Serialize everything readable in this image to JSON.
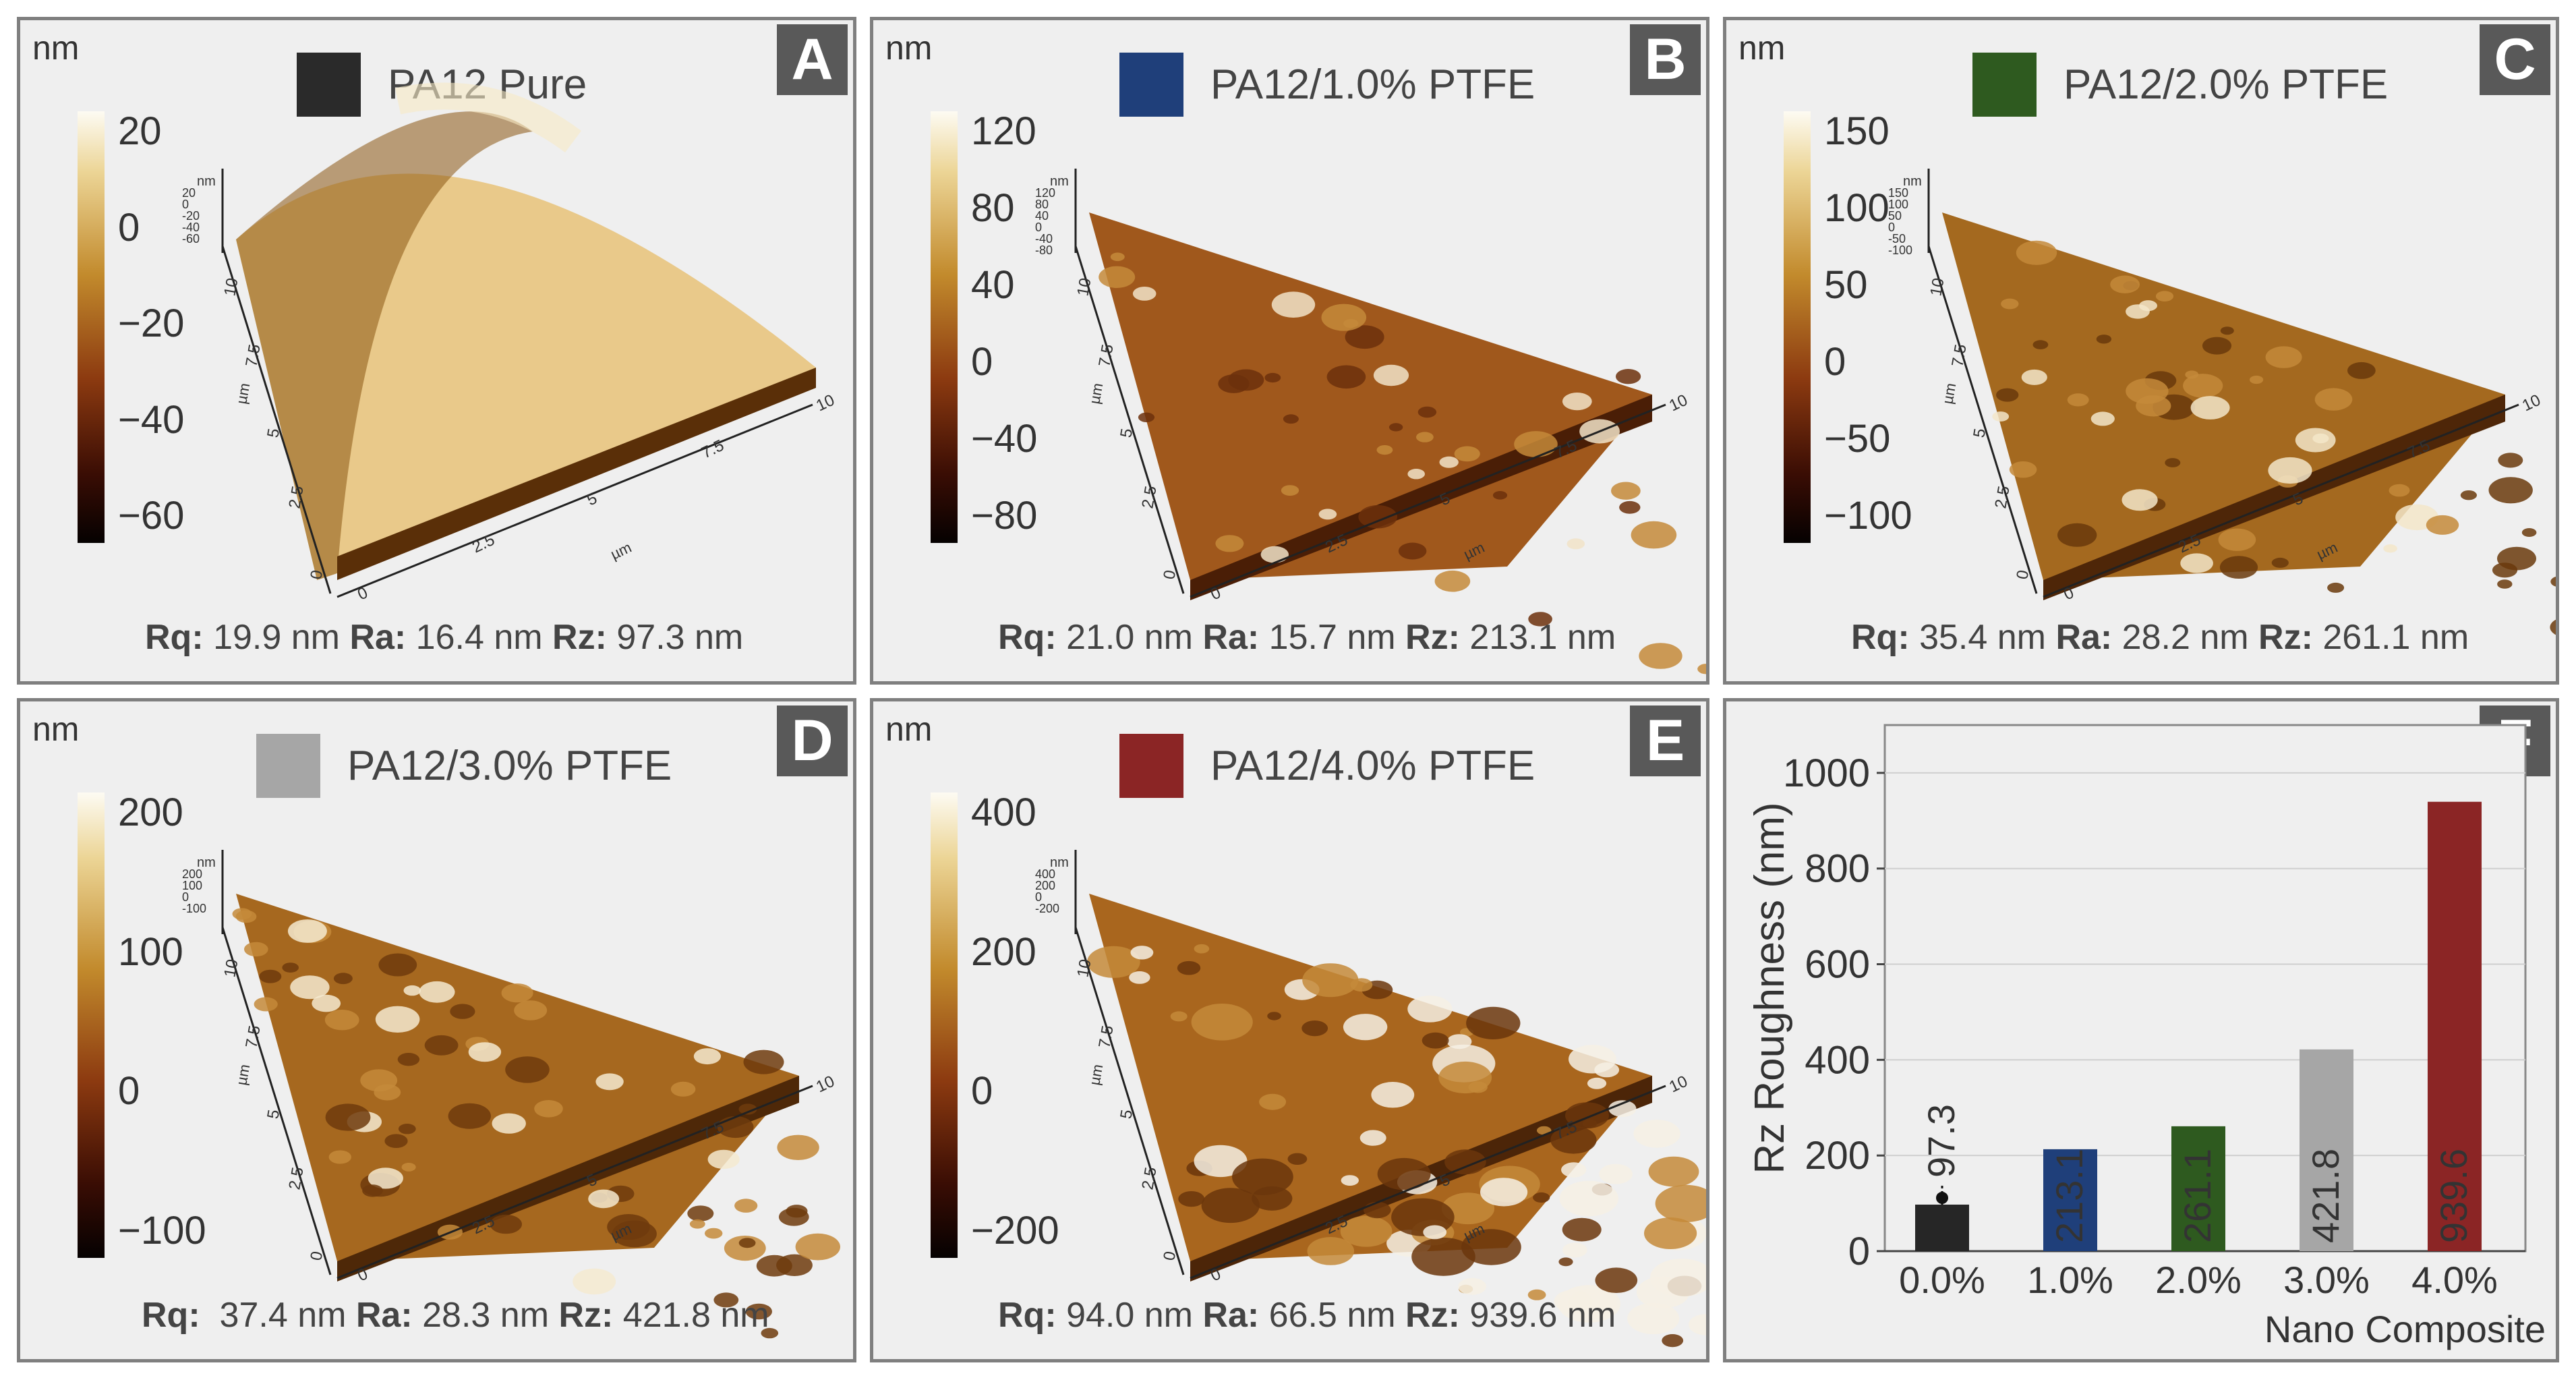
{
  "panels": [
    {
      "letter": "A",
      "unit": "nm",
      "title": "PA12 Pure",
      "swatch": "#2a2a2a",
      "cbar_ticks": [
        "20",
        "0",
        "−20",
        "−40",
        "−60"
      ],
      "mini_ticks": [
        "nm",
        "20",
        "0",
        "-20",
        "-40",
        "-60"
      ],
      "rq_label": "Rq:",
      "rq": " 19.9 nm ",
      "ra_label": "Ra:",
      "ra": " 16.4 nm ",
      "rz_label": "Rz:",
      "rz": " 97.3 nm"
    },
    {
      "letter": "B",
      "unit": "nm",
      "title": "PA12/1.0% PTFE",
      "swatch": "#1f3f7a",
      "cbar_ticks": [
        "120",
        "80",
        "40",
        "0",
        "−40",
        "−80"
      ],
      "mini_ticks": [
        "nm",
        "120",
        "80",
        "40",
        "0",
        "-40",
        "-80"
      ],
      "rq_label": "Rq:",
      "rq": " 21.0 nm ",
      "ra_label": "Ra:",
      "ra": " 15.7 nm ",
      "rz_label": "Rz:",
      "rz": " 213.1 nm"
    },
    {
      "letter": "C",
      "unit": "nm",
      "title": "PA12/2.0% PTFE",
      "swatch": "#2e5a1f",
      "cbar_ticks": [
        "150",
        "100",
        "50",
        "0",
        "−50",
        "−100"
      ],
      "mini_ticks": [
        "nm",
        "150",
        "100",
        "50",
        "0",
        "-50",
        "-100"
      ],
      "rq_label": "Rq:",
      "rq": " 35.4 nm ",
      "ra_label": "Ra:",
      "ra": " 28.2 nm ",
      "rz_label": "Rz:",
      "rz": " 261.1 nm"
    },
    {
      "letter": "D",
      "unit": "nm",
      "title": "PA12/3.0% PTFE",
      "swatch": "#a6a6a6",
      "cbar_ticks": [
        "200",
        "100",
        "0",
        "−100"
      ],
      "mini_ticks": [
        "nm",
        "200",
        "100",
        "0",
        "-100"
      ],
      "rq_label": "Rq:",
      "rq": "  37.4 nm ",
      "ra_label": "Ra:",
      "ra": " 28.3 nm ",
      "rz_label": "Rz:",
      "rz": " 421.8 nm"
    },
    {
      "letter": "E",
      "unit": "nm",
      "title": "PA12/4.0% PTFE",
      "swatch": "#8b2525",
      "cbar_ticks": [
        "400",
        "200",
        "0",
        "−200"
      ],
      "mini_ticks": [
        "nm",
        "400",
        "200",
        "0",
        "-200"
      ],
      "rq_label": "Rq:",
      "rq": " 94.0 nm ",
      "ra_label": "Ra:",
      "ra": " 66.5 nm ",
      "rz_label": "Rz:",
      "rz": " 939.6 nm"
    }
  ],
  "surface_axis": {
    "y_ticks": [
      "10",
      "7.5",
      "5",
      "2.5",
      "0"
    ],
    "x_ticks": [
      "0",
      "2.5",
      "5",
      "7.5",
      "10"
    ],
    "unit": "µm"
  },
  "chart_panel_letter": "F",
  "chart_data": {
    "type": "bar",
    "categories": [
      "0.0%",
      "1.0%",
      "2.0%",
      "3.0%",
      "4.0%"
    ],
    "values": [
      97.3,
      213.1,
      261.1,
      421.8,
      939.6
    ],
    "value_labels": [
      "97.3",
      "213.1",
      "261.1",
      "421.8",
      "939.6"
    ],
    "colors": [
      "#262626",
      "#1f3f7a",
      "#2e5a1f",
      "#a6a6a6",
      "#8b2525"
    ],
    "ylabel": "Rz Roughness (nm)",
    "xlabel": "Nano Composite",
    "ylim": [
      0,
      1100
    ],
    "yticks": [
      0,
      200,
      400,
      600,
      800,
      1000
    ],
    "grid": true
  }
}
